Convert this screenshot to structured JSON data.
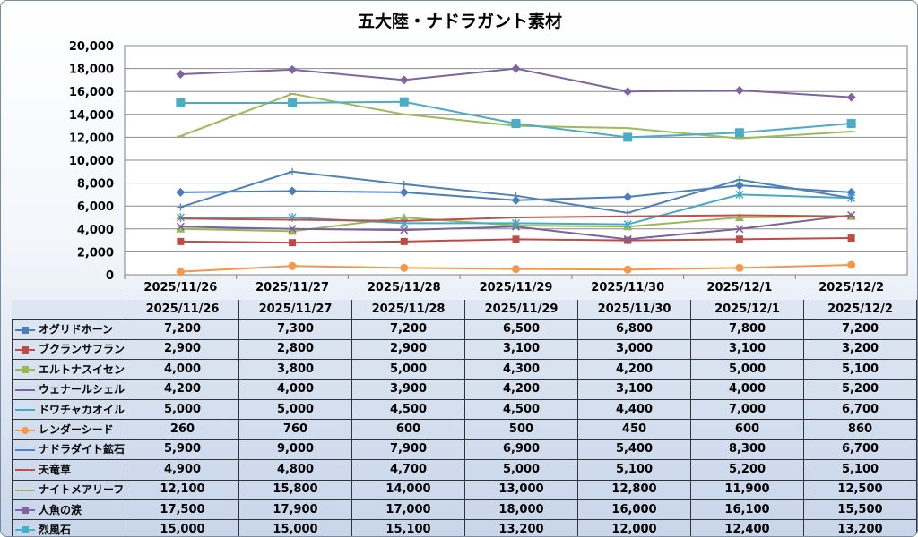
{
  "chart_data": {
    "type": "line",
    "title": "五大陸・ナドラガント素材",
    "categories": [
      "2025/11/26",
      "2025/11/27",
      "2025/11/28",
      "2025/11/29",
      "2025/11/30",
      "2025/12/1",
      "2025/12/2"
    ],
    "ylim": [
      0,
      20000
    ],
    "yticks": [
      "0",
      "2,000",
      "4,000",
      "6,000",
      "8,000",
      "10,000",
      "12,000",
      "14,000",
      "16,000",
      "18,000",
      "20,000"
    ],
    "grid": true,
    "legend": "data-table",
    "series": [
      {
        "name": "オグリドホーン",
        "color": "#4a7ebb",
        "marker": "diamond",
        "values": [
          7200,
          7300,
          7200,
          6500,
          6800,
          7800,
          7200
        ],
        "labels": [
          "7,200",
          "7,300",
          "7,200",
          "6,500",
          "6,800",
          "7,800",
          "7,200"
        ]
      },
      {
        "name": "ブクランサフラン",
        "color": "#be4b48",
        "marker": "square",
        "values": [
          2900,
          2800,
          2900,
          3100,
          3000,
          3100,
          3200
        ],
        "labels": [
          "2,900",
          "2,800",
          "2,900",
          "3,100",
          "3,000",
          "3,100",
          "3,200"
        ]
      },
      {
        "name": "エルトナスイセン",
        "color": "#98b954",
        "marker": "triangle",
        "values": [
          4000,
          3800,
          5000,
          4300,
          4200,
          5000,
          5100
        ],
        "labels": [
          "4,000",
          "3,800",
          "5,000",
          "4,300",
          "4,200",
          "5,000",
          "5,100"
        ]
      },
      {
        "name": "ウェナールシェル",
        "color": "#7d60a0",
        "marker": "x",
        "values": [
          4200,
          4000,
          3900,
          4200,
          3100,
          4000,
          5200
        ],
        "labels": [
          "4,200",
          "4,000",
          "3,900",
          "4,200",
          "3,100",
          "4,000",
          "5,200"
        ]
      },
      {
        "name": "ドワチャカオイル",
        "color": "#46aac5",
        "marker": "star",
        "values": [
          5000,
          5000,
          4500,
          4500,
          4400,
          7000,
          6700
        ],
        "labels": [
          "5,000",
          "5,000",
          "4,500",
          "4,500",
          "4,400",
          "7,000",
          "6,700"
        ]
      },
      {
        "name": "レンダーシード",
        "color": "#f79646",
        "marker": "circle",
        "values": [
          260,
          760,
          600,
          500,
          450,
          600,
          860
        ],
        "labels": [
          "260",
          "760",
          "600",
          "500",
          "450",
          "600",
          "860"
        ]
      },
      {
        "name": "ナドラダイト鉱石",
        "color": "#4f81bd",
        "marker": "plus",
        "values": [
          5900,
          9000,
          7900,
          6900,
          5400,
          8300,
          6700
        ],
        "labels": [
          "5,900",
          "9,000",
          "7,900",
          "6,900",
          "5,400",
          "8,300",
          "6,700"
        ]
      },
      {
        "name": "天竜草",
        "color": "#c0504d",
        "marker": "dash",
        "values": [
          4900,
          4800,
          4700,
          5000,
          5100,
          5200,
          5100
        ],
        "labels": [
          "4,900",
          "4,800",
          "4,700",
          "5,000",
          "5,100",
          "5,200",
          "5,100"
        ]
      },
      {
        "name": "ナイトメアリーフ",
        "color": "#9bbb59",
        "marker": "dash",
        "values": [
          12100,
          15800,
          14000,
          13000,
          12800,
          11900,
          12500
        ],
        "labels": [
          "12,100",
          "15,800",
          "14,000",
          "13,000",
          "12,800",
          "11,900",
          "12,500"
        ]
      },
      {
        "name": "人魚の涙",
        "color": "#8064a2",
        "marker": "diamond",
        "values": [
          17500,
          17900,
          17000,
          18000,
          16000,
          16100,
          15500
        ],
        "labels": [
          "17,500",
          "17,900",
          "17,000",
          "18,000",
          "16,000",
          "16,100",
          "15,500"
        ]
      },
      {
        "name": "烈風石",
        "color": "#4bacc6",
        "marker": "bigsquare",
        "values": [
          15000,
          15000,
          15100,
          13200,
          12000,
          12400,
          13200
        ],
        "labels": [
          "15,000",
          "15,000",
          "15,100",
          "13,200",
          "12,000",
          "12,400",
          "13,200"
        ]
      }
    ]
  }
}
